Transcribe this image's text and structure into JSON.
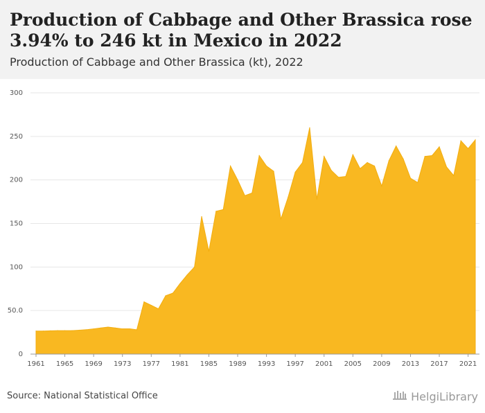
{
  "header": {
    "title": "Production of Cabbage and Other Brassica rose 3.94% to 246 kt in Mexico in 2022",
    "subtitle": "Production of Cabbage and Other Brassica (kt), 2022"
  },
  "footer": {
    "source": "Source: National Statistical Office",
    "brand": "HelgiLibrary"
  },
  "colors": {
    "fill": "#f9b821",
    "stroke": "#f2ad10",
    "header_bg": "#f2f2f2",
    "grid": "#e6e6e6"
  },
  "chart_data": {
    "type": "area",
    "title": "Production of Cabbage and Other Brassica (kt), 2022",
    "ylim": [
      0,
      300
    ],
    "yticks": [
      0,
      50,
      100,
      150,
      200,
      250,
      300
    ],
    "ytick_labels": [
      "0",
      "50.0",
      "100",
      "150",
      "200",
      "250",
      "300"
    ],
    "xticks": [
      1961,
      1965,
      1969,
      1973,
      1977,
      1981,
      1985,
      1989,
      1993,
      1997,
      2001,
      2005,
      2009,
      2013,
      2017,
      2021
    ],
    "grid": true,
    "x": [
      1961,
      1962,
      1963,
      1964,
      1965,
      1966,
      1967,
      1968,
      1969,
      1970,
      1971,
      1972,
      1973,
      1974,
      1975,
      1976,
      1977,
      1978,
      1979,
      1980,
      1981,
      1982,
      1983,
      1984,
      1985,
      1986,
      1987,
      1988,
      1989,
      1990,
      1991,
      1992,
      1993,
      1994,
      1995,
      1996,
      1997,
      1998,
      1999,
      2000,
      2001,
      2002,
      2003,
      2004,
      2005,
      2006,
      2007,
      2008,
      2009,
      2010,
      2011,
      2012,
      2013,
      2014,
      2015,
      2016,
      2017,
      2018,
      2019,
      2020,
      2021,
      2022
    ],
    "values": [
      26.5,
      26.5,
      26.8,
      27,
      27,
      27,
      27.5,
      28,
      29,
      30,
      31,
      30,
      29,
      29,
      28,
      60,
      56,
      52,
      67,
      70,
      81,
      91,
      100,
      158,
      118,
      164,
      166,
      216,
      200,
      182,
      185,
      228,
      216,
      210,
      155,
      180,
      209,
      220,
      260,
      178,
      227,
      211,
      203,
      204,
      229,
      213,
      220,
      216,
      193,
      222,
      239,
      224,
      202,
      197,
      227,
      228,
      238,
      215,
      205,
      245,
      236,
      246
    ]
  }
}
